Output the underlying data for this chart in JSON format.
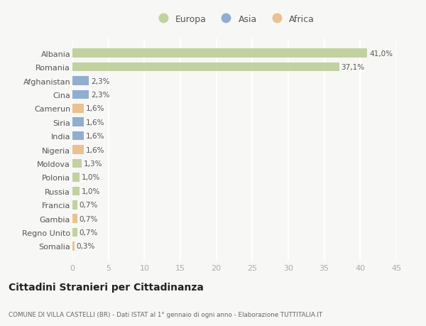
{
  "countries": [
    "Albania",
    "Romania",
    "Afghanistan",
    "Cina",
    "Camerun",
    "Siria",
    "India",
    "Nigeria",
    "Moldova",
    "Polonia",
    "Russia",
    "Francia",
    "Gambia",
    "Regno Unito",
    "Somalia"
  ],
  "values": [
    41.0,
    37.1,
    2.3,
    2.3,
    1.6,
    1.6,
    1.6,
    1.6,
    1.3,
    1.0,
    1.0,
    0.7,
    0.7,
    0.7,
    0.3
  ],
  "labels": [
    "41,0%",
    "37,1%",
    "2,3%",
    "2,3%",
    "1,6%",
    "1,6%",
    "1,6%",
    "1,6%",
    "1,3%",
    "1,0%",
    "1,0%",
    "0,7%",
    "0,7%",
    "0,7%",
    "0,3%"
  ],
  "colors": [
    "#b5c98e",
    "#b5c98e",
    "#7b9dc7",
    "#7b9dc7",
    "#e8b57a",
    "#7b9dc7",
    "#7b9dc7",
    "#e8b57a",
    "#b5c98e",
    "#b5c98e",
    "#b5c98e",
    "#b5c98e",
    "#e8b57a",
    "#b5c98e",
    "#e8b57a"
  ],
  "legend_labels": [
    "Europa",
    "Asia",
    "Africa"
  ],
  "legend_colors": [
    "#b5c98e",
    "#7b9dc7",
    "#e8b57a"
  ],
  "title": "Cittadini Stranieri per Cittadinanza",
  "subtitle": "COMUNE DI VILLA CASTELLI (BR) - Dati ISTAT al 1° gennaio di ogni anno - Elaborazione TUTTITALIA.IT",
  "xlim": [
    0,
    45
  ],
  "xticks": [
    0,
    5,
    10,
    15,
    20,
    25,
    30,
    35,
    40,
    45
  ],
  "background_color": "#f7f7f5",
  "plot_bg_color": "#f7f7f5",
  "grid_color": "#ffffff",
  "bar_alpha": 0.82,
  "bar_height": 0.65
}
